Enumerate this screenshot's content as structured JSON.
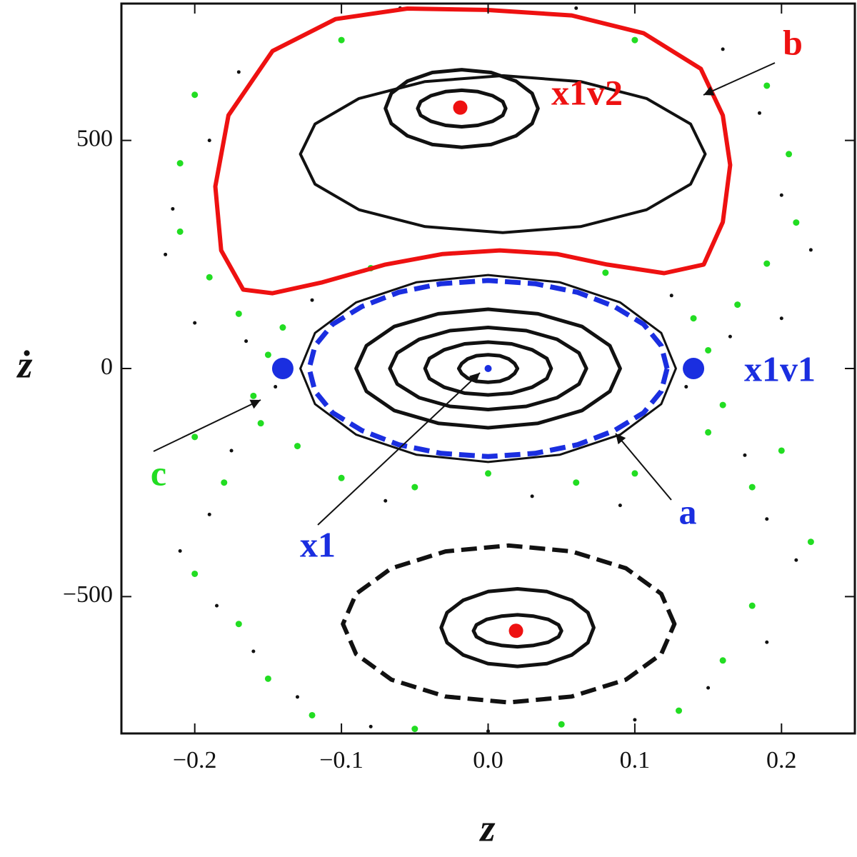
{
  "chart_data": {
    "type": "scatter",
    "xlabel": "z",
    "ylabel": "ż",
    "xlim": [
      -0.25,
      0.25
    ],
    "ylim": [
      -800,
      800
    ],
    "xticks": [
      {
        "value": -0.2,
        "label": "−0.2"
      },
      {
        "value": -0.1,
        "label": "−0.1"
      },
      {
        "value": 0,
        "label": "0.0"
      },
      0.1,
      0.2
    ],
    "yticks": [
      {
        "value": -500,
        "label": "−500"
      },
      0,
      500
    ],
    "series": [
      {
        "name": "c",
        "color": "#22dd22",
        "mode": "markers",
        "x": [
          -0.15,
          -0.16,
          -0.17,
          -0.19,
          -0.2,
          -0.21,
          -0.18,
          -0.155,
          -0.14,
          -0.13,
          0.15,
          0.16,
          0.17,
          0.19,
          0.2,
          0.21,
          0.18,
          0.15,
          0.14,
          0.22,
          -0.1,
          -0.05,
          0.0,
          0.06,
          0.1,
          -0.08,
          0.08,
          -0.2,
          -0.17,
          -0.15,
          -0.12,
          0.18,
          0.16,
          0.13,
          0.05,
          -0.05,
          -0.2,
          -0.21,
          0.19,
          0.205,
          -0.1,
          0.1
        ],
        "y": [
          30,
          -60,
          120,
          200,
          -150,
          300,
          -250,
          -120,
          90,
          -170,
          40,
          -80,
          140,
          230,
          -180,
          320,
          -260,
          -140,
          110,
          -380,
          -240,
          -260,
          -230,
          -250,
          -230,
          220,
          210,
          -450,
          -560,
          -680,
          -760,
          -520,
          -640,
          -750,
          -780,
          -790,
          600,
          450,
          620,
          470,
          720,
          720
        ]
      },
      {
        "color": "#111111",
        "mode": "markers",
        "x": [
          -0.145,
          -0.165,
          -0.175,
          -0.2,
          -0.22,
          -0.19,
          -0.12,
          0.135,
          0.165,
          0.175,
          0.2,
          0.22,
          0.19,
          0.125,
          -0.07,
          0.03,
          0.09,
          -0.21,
          -0.185,
          -0.16,
          -0.13,
          0.21,
          0.19,
          0.15,
          0.1,
          -0.08,
          0.0,
          -0.215,
          -0.19,
          -0.17,
          0.2,
          0.185,
          0.16,
          -0.06,
          0.06
        ],
        "y": [
          -40,
          60,
          -180,
          100,
          250,
          -320,
          150,
          -40,
          70,
          -190,
          110,
          260,
          -330,
          160,
          -290,
          -280,
          -300,
          -400,
          -520,
          -620,
          -720,
          -420,
          -600,
          -700,
          -770,
          -785,
          -795,
          350,
          500,
          650,
          380,
          560,
          700,
          790,
          790
        ]
      },
      {
        "name": "b",
        "color": "#ee1111",
        "mode": "line",
        "x": [
          -0.147,
          -0.167,
          -0.182,
          -0.186,
          -0.177,
          -0.147,
          -0.104,
          -0.055,
          -0.001,
          0.057,
          0.106,
          0.145,
          0.16,
          0.165,
          0.16,
          0.147,
          0.12,
          0.081,
          0.047,
          0.008,
          -0.031,
          -0.07,
          -0.113
        ],
        "y": [
          165,
          173,
          259,
          399,
          555,
          696,
          766,
          789,
          786,
          774,
          735,
          657,
          555,
          446,
          321,
          228,
          209,
          228,
          251,
          259,
          251,
          228,
          189
        ]
      },
      {
        "name": "a",
        "color": "#1a2ee0",
        "mode": "dashed",
        "x": [
          0.122,
          0.118,
          0.106,
          0.086,
          0.061,
          0.032,
          0,
          -0.032,
          -0.061,
          -0.086,
          -0.106,
          -0.118,
          -0.122,
          -0.118,
          -0.106,
          -0.086,
          -0.061,
          -0.032,
          0,
          0.032,
          0.061,
          0.086,
          0.106,
          0.118
        ],
        "y": [
          0,
          50,
          97,
          136,
          167,
          186,
          193,
          186,
          167,
          136,
          97,
          50,
          0,
          -50,
          -97,
          -136,
          -167,
          -186,
          -193,
          -186,
          -167,
          -136,
          -97,
          -50
        ]
      },
      {
        "color": "#111111",
        "mode": "line",
        "x": [
          0.02,
          0.018,
          0.014,
          0.008,
          0,
          -0.008,
          -0.014,
          -0.018,
          -0.02,
          -0.018,
          -0.014,
          -0.008,
          0,
          0.008,
          0.014,
          0.018
        ],
        "y": [
          0,
          11,
          21,
          28,
          30,
          28,
          21,
          11,
          0,
          -11,
          -21,
          -28,
          -30,
          -28,
          -21,
          -11
        ]
      },
      {
        "color": "#111111",
        "mode": "line",
        "x": [
          0.043,
          0.04,
          0.03,
          0.016,
          0,
          -0.016,
          -0.03,
          -0.04,
          -0.043,
          -0.04,
          -0.03,
          -0.016,
          0,
          0.016,
          0.03,
          0.04
        ],
        "y": [
          0,
          22,
          41,
          54,
          58,
          54,
          41,
          22,
          0,
          -22,
          -41,
          -54,
          -58,
          -54,
          -41,
          -22
        ]
      },
      {
        "color": "#111111",
        "mode": "line",
        "x": [
          0.067,
          0.062,
          0.047,
          0.026,
          0,
          -0.026,
          -0.047,
          -0.062,
          -0.067,
          -0.062,
          -0.047,
          -0.026,
          0,
          0.026,
          0.047,
          0.062
        ],
        "y": [
          0,
          34,
          64,
          83,
          90,
          83,
          64,
          34,
          0,
          -34,
          -64,
          -83,
          -90,
          -83,
          -64,
          -34
        ]
      },
      {
        "color": "#111111",
        "mode": "line",
        "x": [
          0.09,
          0.083,
          0.064,
          0.034,
          0,
          -0.034,
          -0.064,
          -0.083,
          -0.09,
          -0.083,
          -0.064,
          -0.034,
          0,
          0.034,
          0.064,
          0.083
        ],
        "y": [
          0,
          50,
          92,
          120,
          130,
          120,
          92,
          50,
          0,
          -50,
          -92,
          -120,
          -130,
          -120,
          -92,
          -50
        ]
      },
      {
        "color": "#111111",
        "mode": "line",
        "x": [
          0.128,
          0.118,
          0.09,
          0.049,
          0,
          -0.049,
          -0.09,
          -0.118,
          -0.128,
          -0.118,
          -0.09,
          -0.049,
          0,
          0.049,
          0.09,
          0.118
        ],
        "y": [
          0,
          78,
          145,
          189,
          205,
          189,
          145,
          78,
          0,
          -78,
          -145,
          -189,
          -205,
          -189,
          -145,
          -78
        ]
      },
      {
        "color": "#111111",
        "mode": "line",
        "x": [
          0.034,
          0.03,
          0.019,
          0.002,
          -0.018,
          -0.038,
          -0.055,
          -0.066,
          -0.07,
          -0.066,
          -0.055,
          -0.038,
          -0.018,
          0.002,
          0.019,
          0.03
        ],
        "y": [
          570,
          603,
          630,
          649,
          655,
          649,
          630,
          603,
          570,
          537,
          510,
          491,
          485,
          491,
          510,
          537
        ]
      },
      {
        "color": "#111111",
        "mode": "line",
        "x": [
          0.012,
          0.01,
          0.003,
          -0.007,
          -0.018,
          -0.029,
          -0.039,
          -0.046,
          -0.048,
          -0.046,
          -0.039,
          -0.029,
          -0.018,
          -0.007,
          0.003,
          0.01
        ],
        "y": [
          570,
          585,
          598,
          607,
          610,
          607,
          598,
          585,
          570,
          555,
          542,
          533,
          530,
          533,
          542,
          555
        ]
      },
      {
        "color": "#111111",
        "mode": "line",
        "x": [
          0.148,
          0.138,
          0.108,
          0.063,
          0.01,
          -0.043,
          -0.088,
          -0.118,
          -0.128,
          -0.118,
          -0.088,
          -0.043,
          0.01,
          0.063,
          0.108,
          0.138
        ],
        "y": [
          470,
          536,
          592,
          629,
          642,
          629,
          592,
          536,
          470,
          404,
          348,
          311,
          298,
          311,
          348,
          404
        ]
      },
      {
        "color": "#111111",
        "mode": "line",
        "x": [
          0.072,
          0.068,
          0.057,
          0.04,
          0.02,
          0,
          -0.017,
          -0.028,
          -0.032,
          -0.028,
          -0.017,
          0,
          0.02,
          0.04,
          0.057,
          0.068
        ],
        "y": [
          -568,
          -535,
          -508,
          -489,
          -483,
          -489,
          -508,
          -535,
          -568,
          -601,
          -628,
          -647,
          -653,
          -647,
          -628,
          -601
        ]
      },
      {
        "color": "#111111",
        "mode": "line",
        "x": [
          0.05,
          0.048,
          0.041,
          0.031,
          0.02,
          0.009,
          -0.001,
          -0.008,
          -0.01,
          -0.008,
          -0.001,
          0.009,
          0.02,
          0.031,
          0.041,
          0.048
        ],
        "y": [
          -575,
          -562,
          -550,
          -543,
          -540,
          -543,
          -550,
          -562,
          -575,
          -588,
          -600,
          -607,
          -610,
          -607,
          -600,
          -588
        ]
      },
      {
        "color": "#111111",
        "mode": "dashed",
        "x": [
          0.127,
          0.118,
          0.094,
          0.057,
          0.014,
          -0.029,
          -0.066,
          -0.09,
          -0.099,
          -0.09,
          -0.066,
          -0.029,
          0.014,
          0.057,
          0.094,
          0.118
        ],
        "y": [
          -560,
          -494,
          -438,
          -401,
          -388,
          -401,
          -438,
          -494,
          -560,
          -626,
          -682,
          -719,
          -732,
          -719,
          -682,
          -626
        ]
      },
      {
        "name": "x1",
        "color": "#1a2ee0",
        "mode": "markers",
        "x": [
          0
        ],
        "y": [
          0
        ]
      },
      {
        "name": "x1v1",
        "color": "#1a2ee0",
        "mode": "markers",
        "x": [
          -0.14,
          0.14
        ],
        "y": [
          0,
          0
        ]
      },
      {
        "name": "x1v2",
        "color": "#ee1111",
        "mode": "markers",
        "x": [
          -0.019,
          0.019
        ],
        "y": [
          572,
          -575
        ]
      }
    ]
  }
}
